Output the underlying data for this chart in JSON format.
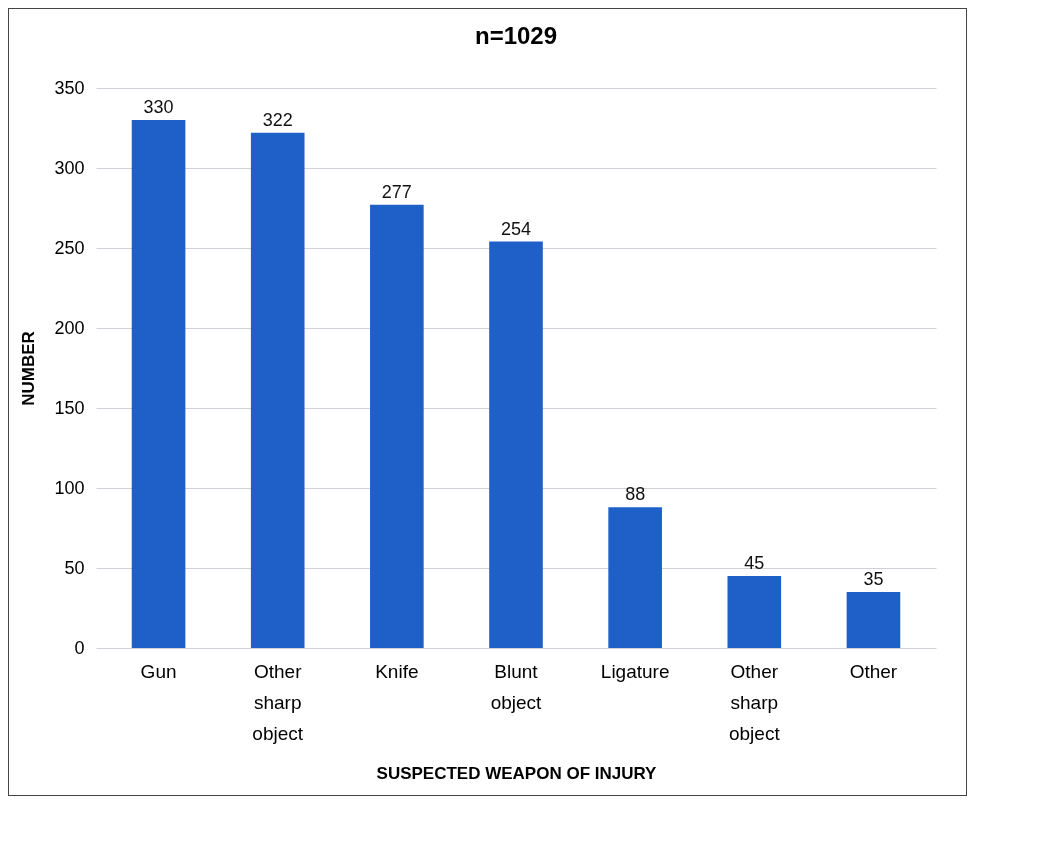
{
  "chart_data": {
    "type": "bar",
    "title": "n=1029",
    "xlabel": "SUSPECTED WEAPON OF INJURY",
    "ylabel": "NUMBER",
    "categories": [
      "Gun",
      "Other sharp object",
      "Knife",
      "Blunt object",
      "Ligature",
      "Other sharp object",
      "Other"
    ],
    "values": [
      330,
      322,
      277,
      254,
      88,
      45,
      35
    ],
    "color": "#1f5fc8",
    "ylim": [
      0,
      350
    ],
    "yticks": [
      0,
      50,
      100,
      150,
      200,
      250,
      300,
      350
    ],
    "grid": "y",
    "data_labels": true
  }
}
